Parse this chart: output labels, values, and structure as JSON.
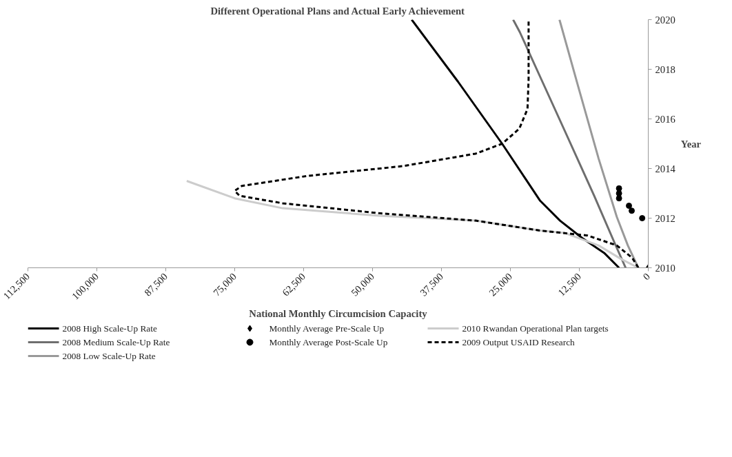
{
  "chart_data": {
    "type": "line",
    "title": "Different Operational Plans and Actual Early Achievement",
    "xlabel": "National Monthly Circumcision Capacity",
    "ylabel": "Year",
    "xlim": [
      112500,
      0
    ],
    "xticks": [
      {
        "value": 112500,
        "label": "112,500"
      },
      {
        "value": 100000,
        "label": "100,000"
      },
      {
        "value": 87500,
        "label": "87,500"
      },
      {
        "value": 75000,
        "label": "75,000"
      },
      {
        "value": 62500,
        "label": "62,500"
      },
      {
        "value": 50000,
        "label": "50,000"
      },
      {
        "value": 37500,
        "label": "37,500"
      },
      {
        "value": 25000,
        "label": "25,000"
      },
      {
        "value": 12500,
        "label": "12,500"
      },
      0
    ],
    "ylim": [
      2010,
      2020
    ],
    "yticks": [
      2010,
      2012,
      2014,
      2016,
      2018,
      2020
    ],
    "grid": false,
    "legend": "bottom",
    "marker": "none",
    "line_style": "solid",
    "series": [
      {
        "name": "2008 High Scale-Up  Rate",
        "color": "#000000",
        "x": [
          42900,
          34500,
          26500,
          22600,
          19600,
          16000,
          12000,
          8000,
          5300
        ],
        "values": [
          2020,
          2017.5,
          2015,
          2013.7,
          2012.7,
          2011.9,
          2011.2,
          2010.6,
          2010
        ]
      },
      {
        "name": "2008 Medium Scale-Up Rate",
        "color": "#6e6e6e",
        "x": [
          24500,
          23300,
          19200,
          15100,
          9800,
          6100,
          4100
        ],
        "values": [
          2020,
          2019.5,
          2017.5,
          2015.5,
          2012.9,
          2011,
          2010
        ]
      },
      {
        "name": "2008 Low Scale-Up Rate",
        "color": "#999999",
        "x": [
          16100,
          12700,
          9000,
          5700,
          3700,
          1800
        ],
        "values": [
          2020,
          2017.3,
          2014.4,
          2012.05,
          2010.9,
          2010
        ]
      },
      {
        "name": "Monthly Average Pre-Scale Up",
        "type": "scatter",
        "marker": "diamond",
        "color": "#000000",
        "x": [
          0
        ],
        "values": [
          2010
        ]
      },
      {
        "name": "Monthly Average Post-Scale Up",
        "type": "scatter",
        "marker": "circle",
        "color": "#000000",
        "x": [
          5300,
          5300,
          5300,
          3500,
          3000,
          1100
        ],
        "values": [
          2013.2,
          2013,
          2012.8,
          2012.5,
          2012.3,
          2012
        ]
      },
      {
        "name": "2010 Rwandan Operational Plan targets",
        "color": "#cccccc",
        "x": [
          83700,
          75000,
          66300,
          48800,
          31300,
          19600,
          15100,
          9000,
          4900,
          1800
        ],
        "values": [
          2013.5,
          2012.8,
          2012.4,
          2012.1,
          2011.9,
          2011.5,
          2011.4,
          2010.9,
          2010.35,
          2010
        ]
      },
      {
        "name": "2009 Output USAID Research",
        "line_style": "dashed",
        "color": "#000000",
        "x": [
          1800,
          2900,
          5700,
          11000,
          19600,
          31300,
          48800,
          66300,
          74100,
          75000,
          73700,
          61900,
          44400,
          31300,
          26500,
          23400,
          21900,
          21700,
          21700
        ],
        "values": [
          2010,
          2010.4,
          2010.9,
          2011.3,
          2011.5,
          2011.9,
          2012.2,
          2012.6,
          2012.9,
          2013.1,
          2013.3,
          2013.7,
          2014.1,
          2014.6,
          2015,
          2015.6,
          2016.4,
          2017.6,
          2020
        ]
      }
    ]
  }
}
